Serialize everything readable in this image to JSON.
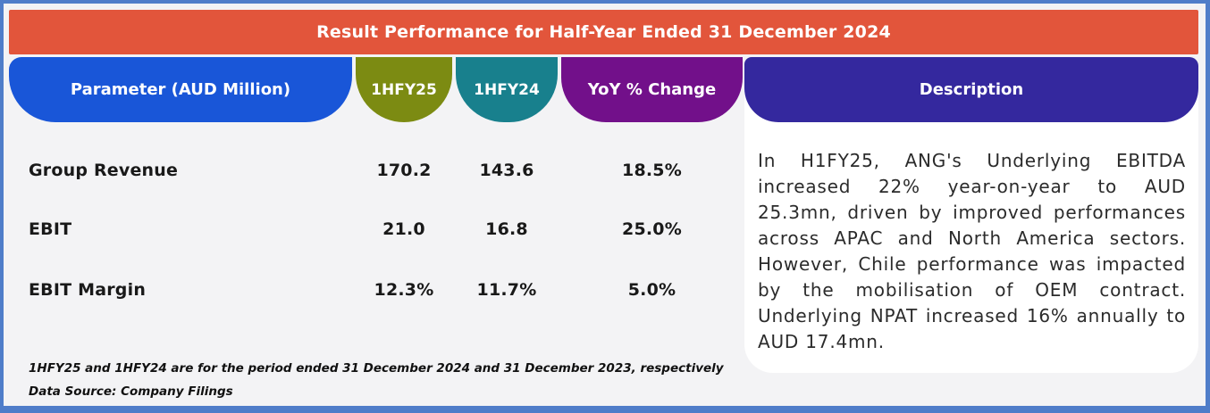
{
  "title": "Result Performance for Half-Year Ended 31 December 2024",
  "columns": {
    "parameter": "Parameter (AUD Million)",
    "hfy25": "1HFY25",
    "hfy24": "1HFY24",
    "yoy": "YoY % Change",
    "description": "Description"
  },
  "rows": [
    {
      "label": "Group Revenue",
      "hfy25": "170.2",
      "hfy24": "143.6",
      "yoy": "18.5%"
    },
    {
      "label": "EBIT",
      "hfy25": "21.0",
      "hfy24": "16.8",
      "yoy": "25.0%"
    },
    {
      "label": "EBIT Margin",
      "hfy25": "12.3%",
      "hfy24": "11.7%",
      "yoy": "5.0%"
    }
  ],
  "description": {
    "text": "In H1FY25, ANG's Underlying EBITDA increased 22% year-on-year to AUD 25.3mn, driven by improved performances across APAC and North America sectors. However, Chile performance was impacted by the mobilisation of OEM contract. Underlying NPAT increased 16% annually to AUD 17.4mn."
  },
  "footnotes": [
    "1HFY25 and 1HFY24 are for the period ended 31 December 2024 and 31 December 2023, respectively",
    "Data Source: Company Filings"
  ],
  "colors": {
    "orange": "#E2553B",
    "blue": "#1956D8",
    "olive": "#7C8B12",
    "teal": "#18808D",
    "purple": "#72108A",
    "indigo": "#34289E",
    "border-blue": "#4F7DC9",
    "bg": "#F3F3F5",
    "card": "#FFFFFF",
    "text-dark": "#191919",
    "desc-text": "#2B2B2B"
  },
  "chart_data": {
    "type": "table",
    "title": "Result Performance for Half-Year Ended 31 December 2024",
    "columns": [
      "Parameter (AUD Million)",
      "1HFY25",
      "1HFY24",
      "YoY % Change",
      "Description"
    ],
    "rows": [
      [
        "Group Revenue",
        "170.2",
        "143.6",
        "18.5%"
      ],
      [
        "EBIT",
        "21.0",
        "16.8",
        "25.0%"
      ],
      [
        "EBIT Margin",
        "12.3%",
        "11.7%",
        "5.0%"
      ]
    ],
    "notes": [
      "1HFY25 and 1HFY24 are for the period ended 31 December 2024 and 31 December 2023, respectively",
      "Data Source: Company Filings"
    ],
    "description": "In H1FY25, ANG's Underlying EBITDA increased 22% year-on-year to AUD 25.3mn, driven by improved performances across APAC and North America sectors. However, Chile performance was impacted by the mobilisation of OEM contract. Underlying NPAT increased 16% annually to AUD 17.4mn."
  }
}
